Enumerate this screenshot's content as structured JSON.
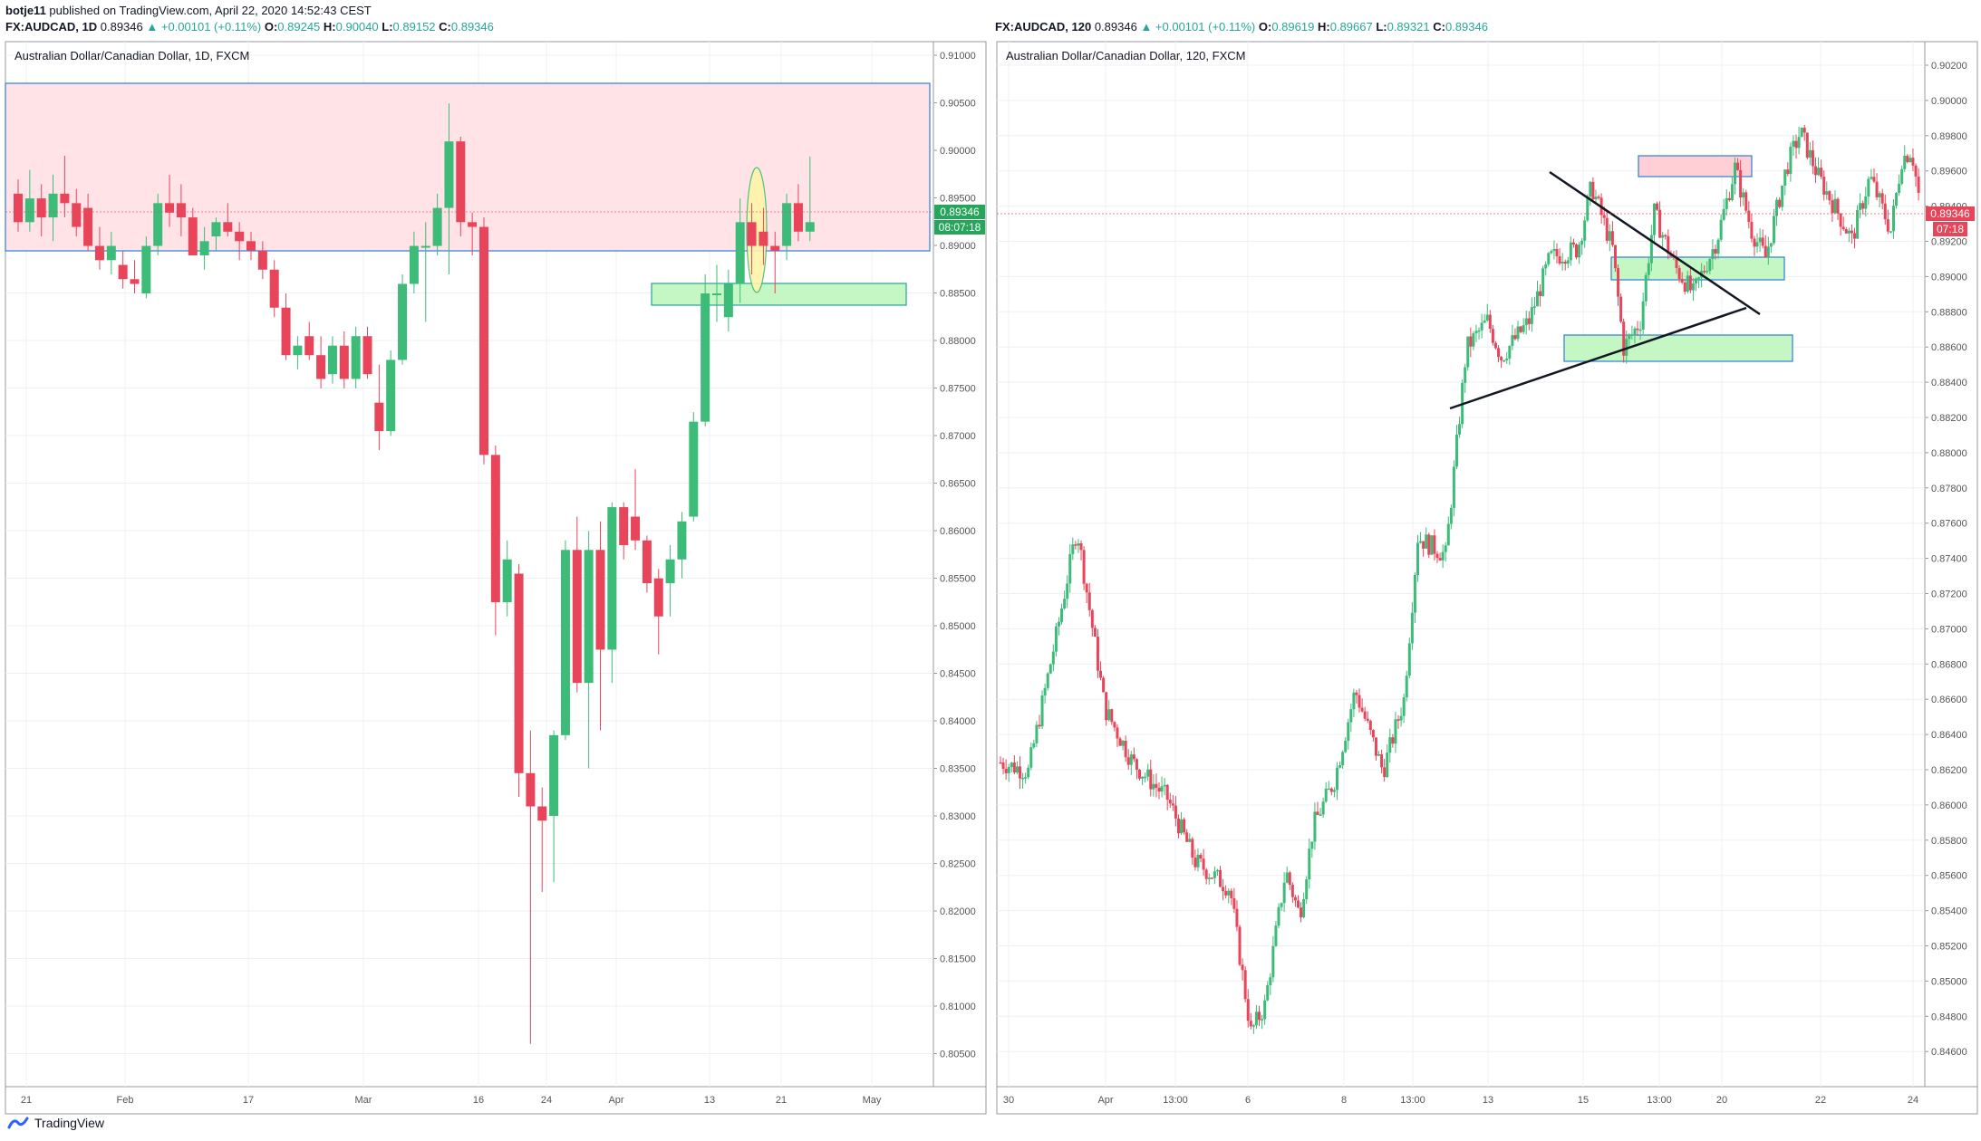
{
  "publish": {
    "user": "botje11",
    "text": "published on TradingView.com, April 22, 2020 14:52:43 CEST"
  },
  "footer": {
    "brand": "TradingView"
  },
  "colors": {
    "bull": "#3dbb78",
    "bear": "#e8455a",
    "zone_red": "#ffcfd5",
    "zone_green": "#b6f5b6",
    "zone_border": "#2a7fdc",
    "price_tag": "#26a65b",
    "price_tag_red": "#e8455a"
  },
  "charts": [
    {
      "header": {
        "symbol": "FX:AUDCAD, 1D",
        "last": "0.89346",
        "change": "▲ +0.00101 (+0.11%)",
        "o_label": "O:",
        "o": "0.89245",
        "h_label": "H:",
        "h": "0.90040",
        "l_label": "L:",
        "l": "0.89152",
        "c_label": "C:",
        "c": "0.89346"
      },
      "title": "Australian Dollar/Canadian Dollar, 1D, FXCM",
      "price_tag": "0.89346",
      "countdown": "08:07:18",
      "y_ticks": [
        "0.91000",
        "0.90500",
        "0.90000",
        "0.89500",
        "0.89000",
        "0.88500",
        "0.88000",
        "0.87500",
        "0.87000",
        "0.86500",
        "0.86000",
        "0.85500",
        "0.85000",
        "0.84500",
        "0.84000",
        "0.83500",
        "0.83000",
        "0.82500",
        "0.82000",
        "0.81500",
        "0.81000",
        "0.80500"
      ],
      "x_ticks": [
        "21",
        "Feb",
        "17",
        "Mar",
        "16",
        "24",
        "Apr",
        "13",
        "21",
        "May"
      ]
    },
    {
      "header": {
        "symbol": "FX:AUDCAD, 120",
        "last": "0.89346",
        "change": "▲ +0.00101 (+0.11%)",
        "o_label": "O:",
        "o": "0.89619",
        "h_label": "H:",
        "h": "0.89667",
        "l_label": "L:",
        "l": "0.89321",
        "c_label": "C:",
        "c": "0.89346"
      },
      "title": "Australian Dollar/Canadian Dollar, 120, FXCM",
      "price_tag": "0.89346",
      "countdown": "07:18",
      "y_ticks": [
        "0.90200",
        "0.90000",
        "0.89800",
        "0.89600",
        "0.89400",
        "0.89200",
        "0.89000",
        "0.88800",
        "0.88600",
        "0.88400",
        "0.88200",
        "0.88000",
        "0.87800",
        "0.87600",
        "0.87400",
        "0.87200",
        "0.87000",
        "0.86800",
        "0.86600",
        "0.86400",
        "0.86200",
        "0.86000",
        "0.85800",
        "0.85600",
        "0.85400",
        "0.85200",
        "0.85000",
        "0.84800",
        "0.84600"
      ],
      "x_ticks": [
        "30",
        "Apr",
        "13:00",
        "6",
        "8",
        "13:00",
        "13",
        "15",
        "13:00",
        "20",
        "22",
        "24"
      ]
    }
  ],
  "chart_data": [
    {
      "type": "candlestick",
      "title": "Australian Dollar/Canadian Dollar, 1D, FXCM",
      "ylim": [
        0.8025,
        0.9125
      ],
      "candles": [
        [
          0.8965,
          0.898,
          0.8925,
          0.8935
        ],
        [
          0.8935,
          0.899,
          0.8925,
          0.896
        ],
        [
          0.896,
          0.8975,
          0.892,
          0.894
        ],
        [
          0.894,
          0.8985,
          0.8915,
          0.8965
        ],
        [
          0.8965,
          0.9005,
          0.894,
          0.8955
        ],
        [
          0.8955,
          0.897,
          0.892,
          0.893
        ],
        [
          0.895,
          0.8965,
          0.8905,
          0.891
        ],
        [
          0.891,
          0.893,
          0.8885,
          0.8895
        ],
        [
          0.8895,
          0.8925,
          0.888,
          0.891
        ],
        [
          0.889,
          0.8905,
          0.8865,
          0.8875
        ],
        [
          0.8875,
          0.8895,
          0.886,
          0.887
        ],
        [
          0.886,
          0.892,
          0.8855,
          0.891
        ],
        [
          0.891,
          0.8965,
          0.89,
          0.8955
        ],
        [
          0.8955,
          0.8985,
          0.893,
          0.8945
        ],
        [
          0.8955,
          0.8975,
          0.892,
          0.894
        ],
        [
          0.894,
          0.895,
          0.89,
          0.89
        ],
        [
          0.89,
          0.893,
          0.8885,
          0.8915
        ],
        [
          0.892,
          0.894,
          0.8905,
          0.8935
        ],
        [
          0.8935,
          0.8955,
          0.892,
          0.8925
        ],
        [
          0.8925,
          0.8935,
          0.8895,
          0.8915
        ],
        [
          0.8915,
          0.8925,
          0.8895,
          0.8905
        ],
        [
          0.8905,
          0.8915,
          0.8875,
          0.8885
        ],
        [
          0.8885,
          0.8895,
          0.8835,
          0.8845
        ],
        [
          0.8845,
          0.886,
          0.879,
          0.8795
        ],
        [
          0.8795,
          0.8815,
          0.878,
          0.8805
        ],
        [
          0.8815,
          0.883,
          0.879,
          0.8795
        ],
        [
          0.8795,
          0.8815,
          0.876,
          0.877
        ],
        [
          0.8775,
          0.8815,
          0.8765,
          0.8805
        ],
        [
          0.8805,
          0.882,
          0.876,
          0.877
        ],
        [
          0.877,
          0.8825,
          0.876,
          0.8815
        ],
        [
          0.8815,
          0.8825,
          0.877,
          0.8775
        ],
        [
          0.8745,
          0.8785,
          0.8695,
          0.8715
        ],
        [
          0.8715,
          0.88,
          0.871,
          0.879
        ],
        [
          0.879,
          0.888,
          0.8785,
          0.887
        ],
        [
          0.887,
          0.8925,
          0.886,
          0.891
        ],
        [
          0.891,
          0.8935,
          0.883,
          0.891
        ],
        [
          0.891,
          0.8965,
          0.89,
          0.895
        ],
        [
          0.895,
          0.906,
          0.888,
          0.902
        ],
        [
          0.902,
          0.9025,
          0.892,
          0.8935
        ],
        [
          0.8935,
          0.8945,
          0.89,
          0.893
        ],
        [
          0.893,
          0.894,
          0.868,
          0.869
        ],
        [
          0.869,
          0.87,
          0.85,
          0.8535
        ],
        [
          0.8535,
          0.86,
          0.852,
          0.858
        ],
        [
          0.8565,
          0.8575,
          0.833,
          0.8355
        ],
        [
          0.8355,
          0.84,
          0.807,
          0.832
        ],
        [
          0.832,
          0.834,
          0.823,
          0.8305
        ],
        [
          0.831,
          0.84,
          0.824,
          0.8395
        ],
        [
          0.8395,
          0.86,
          0.839,
          0.859
        ],
        [
          0.859,
          0.8625,
          0.844,
          0.845
        ],
        [
          0.845,
          0.861,
          0.836,
          0.859
        ],
        [
          0.859,
          0.862,
          0.84,
          0.8485
        ],
        [
          0.8485,
          0.864,
          0.845,
          0.8635
        ],
        [
          0.8635,
          0.864,
          0.858,
          0.8595
        ],
        [
          0.8625,
          0.8675,
          0.859,
          0.86
        ],
        [
          0.86,
          0.8605,
          0.8545,
          0.8555
        ],
        [
          0.856,
          0.857,
          0.848,
          0.852
        ],
        [
          0.8555,
          0.8595,
          0.852,
          0.858
        ],
        [
          0.858,
          0.863,
          0.856,
          0.862
        ],
        [
          0.8625,
          0.8735,
          0.862,
          0.8725
        ],
        [
          0.8725,
          0.888,
          0.872,
          0.886
        ],
        [
          0.886,
          0.889,
          0.883,
          0.886
        ],
        [
          0.8835,
          0.8885,
          0.882,
          0.887
        ],
        [
          0.887,
          0.896,
          0.885,
          0.8935
        ],
        [
          0.8935,
          0.8955,
          0.888,
          0.891
        ],
        [
          0.8925,
          0.895,
          0.889,
          0.891
        ],
        [
          0.891,
          0.8925,
          0.886,
          0.8905
        ],
        [
          0.891,
          0.8965,
          0.8895,
          0.8955
        ],
        [
          0.8955,
          0.8975,
          0.8915,
          0.8925
        ],
        [
          0.8925,
          0.9004,
          0.8915,
          0.8935
        ]
      ]
    },
    {
      "type": "candlestick",
      "title": "Australian Dollar/Canadian Dollar, 120, FXCM",
      "ylim": [
        0.845,
        0.903
      ],
      "annotations": [
        "red-zone",
        "green-zone-upper",
        "green-zone-lower",
        "trendline-down",
        "trendline-up"
      ]
    }
  ]
}
